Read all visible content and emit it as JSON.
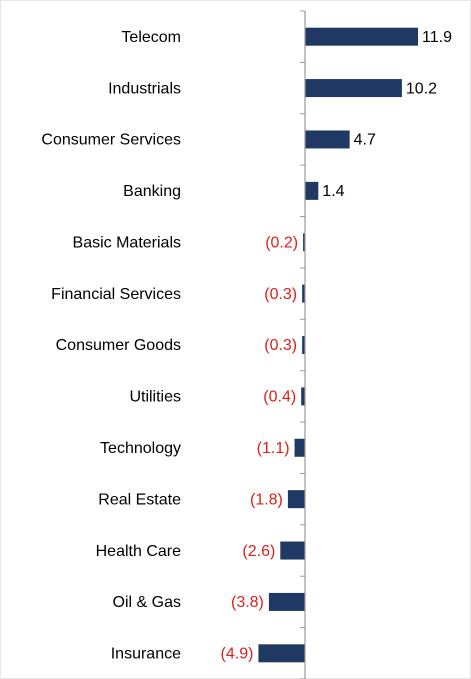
{
  "chart_data": {
    "type": "hbar",
    "categories": [
      "Telecom",
      "Industrials",
      "Consumer Services",
      "Banking",
      "Basic Materials",
      "Financial Services",
      "Consumer Goods",
      "Utilities",
      "Technology",
      "Real Estate",
      "Health Care",
      "Oil & Gas",
      "Insurance"
    ],
    "values": [
      11.9,
      10.2,
      4.7,
      1.4,
      -0.2,
      -0.3,
      -0.3,
      -0.4,
      -1.1,
      -1.8,
      -2.6,
      -3.8,
      -4.9
    ],
    "value_labels": [
      "11.9",
      "10.2",
      "4.7",
      "1.4",
      "(0.2)",
      "(0.3)",
      "(0.3)",
      "(0.4)",
      "(1.1)",
      "(1.8)",
      "(2.6)",
      "(3.8)",
      "(4.9)"
    ],
    "color": "#1f3864",
    "negative_label_color": "#e0201b",
    "xlim": [
      -5,
      12
    ]
  }
}
